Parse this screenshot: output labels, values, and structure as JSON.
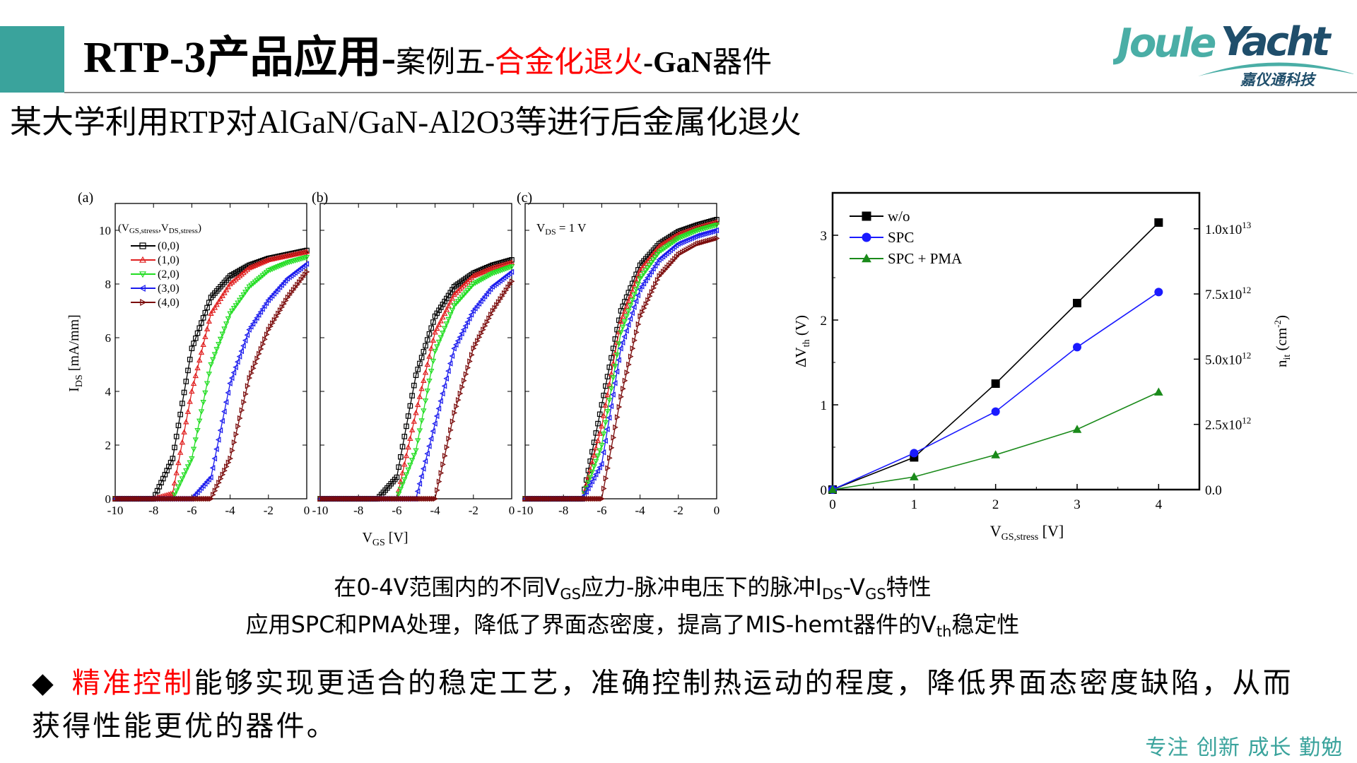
{
  "header": {
    "title_segments": [
      {
        "text": "RTP-3产品应用-",
        "style": "big"
      },
      {
        "text": "案例五-",
        "style": "small"
      },
      {
        "text": "合金化退火",
        "style": "red"
      },
      {
        "text": "-GaN",
        "style": "bold"
      },
      {
        "text": "器件",
        "style": "small"
      }
    ],
    "subtitle": "某大学利用RTP对AlGaN/GaN-Al2O3等进行后金属化退火",
    "accent_color": "#3aa39c",
    "highlight_color": "#ff0000"
  },
  "logo": {
    "brand_left": "Joule",
    "brand_right": "Yacht",
    "chinese": "嘉仪通科技",
    "colors": [
      "#4aaea6",
      "#1f4e6b"
    ]
  },
  "captions": {
    "line1": {
      "a": "在0-4V范围内的不同V",
      "s1": "GS",
      "b": "应力-脉冲电压下的脉冲I",
      "s2": "DS",
      "c": "-V",
      "s3": "GS",
      "d": "特性"
    },
    "line2": {
      "a": "应用SPC和PMA处理，降低了界面态密度，提高了MIS-hemt器件的V",
      "s1": "th",
      "b": "稳定性"
    }
  },
  "bullet": {
    "marker": "◆",
    "highlight": "精准控制",
    "text": "能够实现更适合的稳定工艺，准确控制热运动的程度，降低界面态密度缺陷，从而获得性能更优的器件。"
  },
  "footer": {
    "motto": "专注 创新 成长 勤勉"
  },
  "chart_data": [
    {
      "type": "line",
      "title": "",
      "ylabel": "I_DS [mA/mm]",
      "xlabel": "V_GS [V]",
      "xlim": [
        -10,
        0
      ],
      "ylim": [
        0,
        11
      ],
      "x_ticks": [
        -10,
        -8,
        -6,
        -4,
        -2,
        0
      ],
      "y_ticks": [
        0,
        2,
        4,
        6,
        8,
        10
      ],
      "legend_title": "(V_GS,stress, V_DS,stress)",
      "legend_placement": "top-left",
      "x": [
        -10,
        -9,
        -8,
        -7,
        -6,
        -5,
        -4,
        -3,
        -2,
        -1,
        0
      ],
      "series_names": [
        "(0,0)",
        "(1,0)",
        "(2,0)",
        "(3,0)",
        "(4,0)"
      ],
      "series_colors": [
        "#000000",
        "#e02020",
        "#22dd22",
        "#1a1aee",
        "#7a0a0a"
      ],
      "series_markers": [
        "square",
        "triangle-up",
        "triangle-down",
        "triangle-left",
        "triangle-right"
      ],
      "panels": [
        {
          "label": "(a)",
          "annotation": "",
          "series": [
            [
              0,
              0,
              0,
              1.5,
              5.6,
              7.5,
              8.3,
              8.7,
              8.95,
              9.1,
              9.25
            ],
            [
              0,
              0,
              0,
              0.2,
              4.0,
              6.9,
              8.0,
              8.6,
              8.9,
              9.05,
              9.2
            ],
            [
              0,
              0,
              0,
              0,
              1.5,
              5.0,
              6.9,
              7.9,
              8.5,
              8.8,
              9.0
            ],
            [
              0,
              0,
              0,
              0,
              0,
              0.8,
              4.3,
              6.3,
              7.4,
              8.2,
              8.75
            ],
            [
              0,
              0,
              0,
              0,
              0,
              0,
              1.5,
              4.5,
              6.3,
              7.5,
              8.45
            ]
          ]
        },
        {
          "label": "(b)",
          "annotation": "",
          "series": [
            [
              0,
              0,
              0,
              0,
              0.8,
              4.6,
              6.8,
              7.9,
              8.4,
              8.7,
              8.9
            ],
            [
              0,
              0,
              0,
              0,
              0,
              3.2,
              6.2,
              7.6,
              8.3,
              8.6,
              8.8
            ],
            [
              0,
              0,
              0,
              0,
              0,
              1.8,
              5.5,
              7.2,
              8.0,
              8.4,
              8.65
            ],
            [
              0,
              0,
              0,
              0,
              0,
              0,
              2.8,
              5.6,
              7.0,
              7.9,
              8.45
            ],
            [
              0,
              0,
              0,
              0,
              0,
              0,
              0,
              3.2,
              5.6,
              7.0,
              8.1
            ]
          ]
        },
        {
          "label": "(c)",
          "annotation": "V_DS = 1 V",
          "series": [
            [
              0,
              0,
              0,
              0,
              3.5,
              7.0,
              8.7,
              9.5,
              9.95,
              10.2,
              10.4
            ],
            [
              0,
              0,
              0,
              0,
              2.7,
              6.6,
              8.5,
              9.4,
              9.85,
              10.1,
              10.3
            ],
            [
              0,
              0,
              0,
              0,
              2.0,
              6.2,
              8.2,
              9.2,
              9.7,
              10.0,
              10.2
            ],
            [
              0,
              0,
              0,
              0,
              1.3,
              5.6,
              7.8,
              8.9,
              9.5,
              9.8,
              10.0
            ],
            [
              0,
              0,
              0,
              0,
              0,
              3.8,
              6.8,
              8.3,
              9.1,
              9.5,
              9.7
            ]
          ]
        }
      ]
    },
    {
      "type": "line",
      "title": "",
      "xlabel": "V_GS,stress [V]",
      "ylabel": "ΔV_th (V)",
      "y2label": "n_it (cm^-2)",
      "xlim": [
        0,
        4.5
      ],
      "ylim": [
        0,
        3.5
      ],
      "x_ticks": [
        0,
        1,
        2,
        3,
        4
      ],
      "y_ticks": [
        0,
        1,
        2,
        3
      ],
      "y2_ticks": [
        {
          "value": 0,
          "label": "0.0",
          "exp": ""
        },
        {
          "value": 2500000000000.0,
          "label": "2.5x10",
          "exp": "12"
        },
        {
          "value": 5000000000000.0,
          "label": "5.0x10",
          "exp": "12"
        },
        {
          "value": 7500000000000.0,
          "label": "7.5x10",
          "exp": "12"
        },
        {
          "value": 10000000000000.0,
          "label": "1.0x10",
          "exp": "13"
        }
      ],
      "y2_per_y": 3250000000000.0,
      "legend_placement": "top-left",
      "x": [
        0,
        1,
        2,
        3,
        4
      ],
      "series": [
        {
          "name": "w/o",
          "color": "#000000",
          "marker": "square",
          "values": [
            0,
            0.38,
            1.25,
            2.2,
            3.15
          ]
        },
        {
          "name": "SPC",
          "color": "#1a1aff",
          "marker": "circle",
          "values": [
            0,
            0.43,
            0.92,
            1.68,
            2.33
          ]
        },
        {
          "name": "SPC + PMA",
          "color": "#1a8a1a",
          "marker": "triangle-up",
          "values": [
            0,
            0.15,
            0.41,
            0.71,
            1.15
          ]
        }
      ]
    }
  ]
}
